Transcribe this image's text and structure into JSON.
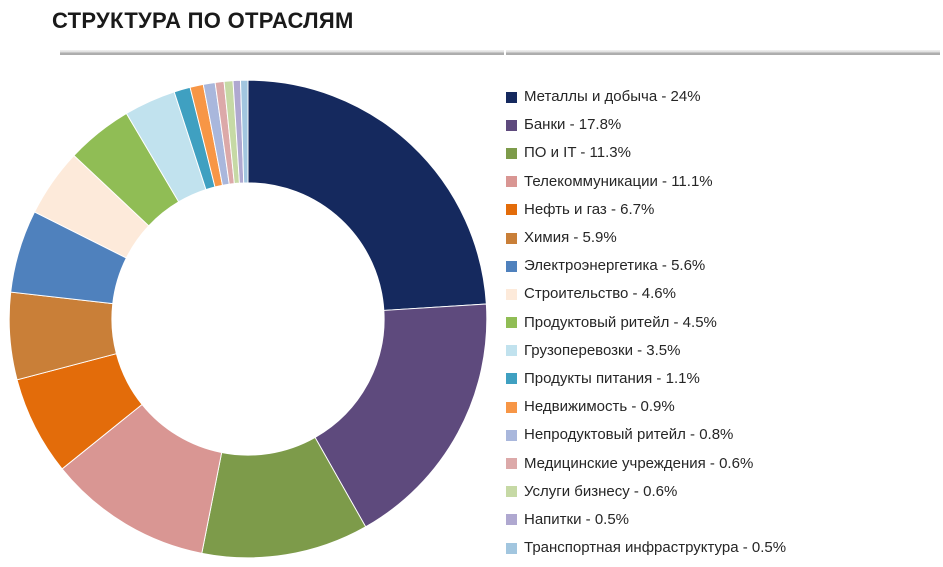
{
  "header": {
    "title": "СТРУКТУРА ПО ОТРАСЛЯМ"
  },
  "chart_data": {
    "type": "pie",
    "variant": "donut",
    "title": "СТРУКТУРА ПО ОТРАСЛЯМ",
    "start_angle_deg": -90,
    "clockwise": true,
    "inner_radius_ratio": 0.57,
    "legend_position": "right",
    "total": 100,
    "categories": [
      "Металлы и добыча",
      "Банки",
      "ПО и IT",
      "Телекоммуникации",
      "Нефть и газ",
      "Химия",
      "Электроэнергетика",
      "Строительство",
      "Продуктовый ритейл",
      "Грузоперевозки",
      "Продукты питания",
      "Недвижимость",
      "Непродуктовый ритейл",
      "Медицинские учреждения",
      "Услуги бизнесу",
      "Напитки",
      "Транспортная инфраструктура"
    ],
    "values": [
      24,
      17.8,
      11.3,
      11.1,
      6.7,
      5.9,
      5.6,
      4.6,
      4.5,
      3.5,
      1.1,
      0.9,
      0.8,
      0.6,
      0.6,
      0.5,
      0.5
    ],
    "value_display": [
      "24%",
      "17.8%",
      "11.3%",
      "11.1%",
      "6.7%",
      "5.9%",
      "5.6%",
      "4.6%",
      "4.5%",
      "3.5%",
      "1.1%",
      "0.9%",
      "0.8%",
      "0.6%",
      "0.6%",
      "0.5%",
      "0.5%"
    ],
    "colors": [
      "#15295E",
      "#5E4A7D",
      "#7D9B4A",
      "#D99693",
      "#E36C0A",
      "#C97F38",
      "#4F81BD",
      "#FDEADA",
      "#90BD55",
      "#C1E2EE",
      "#3FA0C1",
      "#F79646",
      "#A9B7DC",
      "#DCA9A9",
      "#C6D9A5",
      "#AFA8D0",
      "#A2C6DF"
    ],
    "legend_separator": " - "
  }
}
